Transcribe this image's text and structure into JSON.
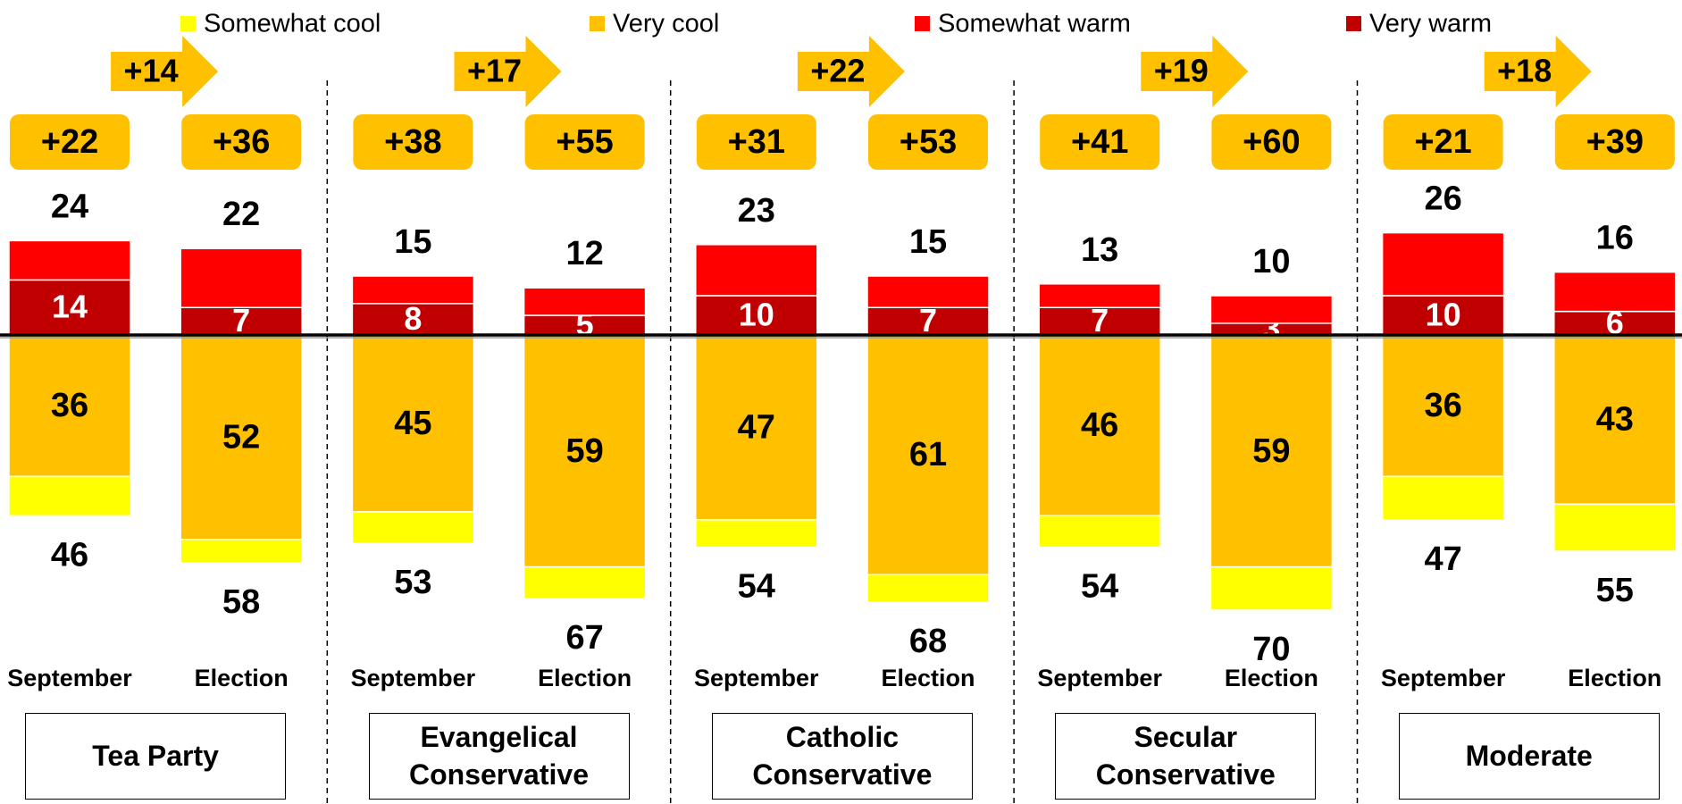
{
  "chart_data": {
    "type": "bar",
    "groups": [
      "Tea Party",
      "Evangelical Conservative",
      "Catholic Conservative",
      "Secular Conservative",
      "Moderate"
    ],
    "categories": [
      "September",
      "Election",
      "September",
      "Election",
      "September",
      "Election",
      "September",
      "Election",
      "September",
      "Election"
    ],
    "series": [
      {
        "name": "Somewhat cool",
        "color": "#FFFF00",
        "values": [
          10,
          6,
          8,
          8,
          7,
          7,
          8,
          11,
          11,
          12
        ]
      },
      {
        "name": "Very cool",
        "color": "#FFC000",
        "values": [
          36,
          52,
          45,
          59,
          47,
          61,
          46,
          59,
          36,
          43
        ]
      },
      {
        "name": "Somewhat warm",
        "color": "#FF0000",
        "values": [
          10,
          15,
          7,
          7,
          13,
          8,
          6,
          7,
          16,
          10
        ]
      },
      {
        "name": "Very warm",
        "color": "#C00000",
        "values": [
          14,
          7,
          8,
          5,
          10,
          7,
          7,
          3,
          10,
          6
        ]
      }
    ],
    "warm_totals": [
      24,
      22,
      15,
      12,
      23,
      15,
      13,
      10,
      26,
      16
    ],
    "cool_totals": [
      46,
      58,
      53,
      67,
      54,
      68,
      54,
      70,
      47,
      55
    ],
    "net": {
      "values": [
        22,
        36,
        38,
        55,
        31,
        53,
        41,
        60,
        21,
        39
      ],
      "value_labels": [
        "+22",
        "+36",
        "+38",
        "+55",
        "+31",
        "+53",
        "+41",
        "+60",
        "+21",
        "+39"
      ]
    },
    "change": {
      "values": [
        14,
        17,
        22,
        19,
        18
      ],
      "value_labels": [
        "+14",
        "+17",
        "+22",
        "+19",
        "+18"
      ]
    }
  }
}
